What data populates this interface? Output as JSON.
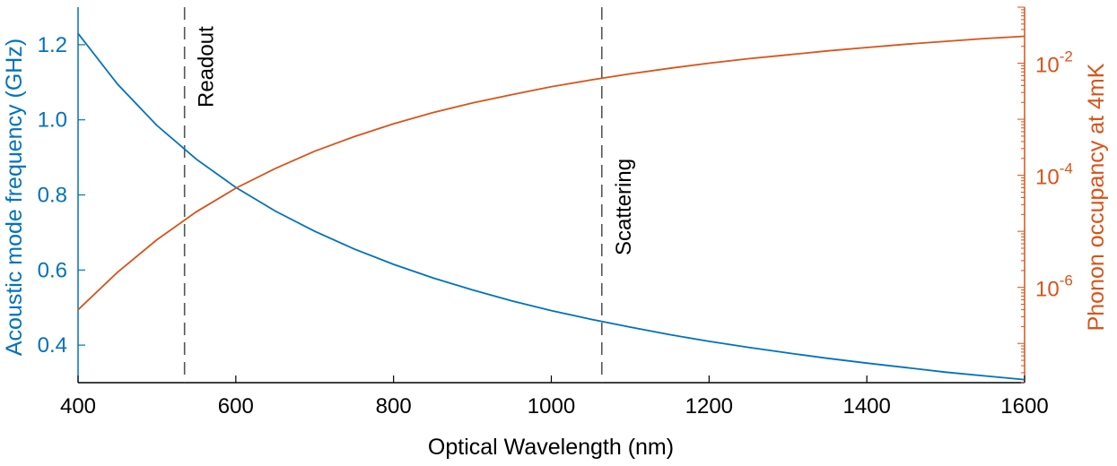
{
  "chart_data": {
    "type": "line",
    "title": "",
    "xlabel": "Optical Wavelength (nm)",
    "xlim": [
      400,
      1600
    ],
    "xticks": [
      400,
      600,
      800,
      1000,
      1200,
      1400,
      1600
    ],
    "left_axis": {
      "label": "Acoustic mode frequency (GHz)",
      "ylim": [
        0.3,
        1.3
      ],
      "ticks": [
        0.4,
        0.6,
        0.8,
        1.0,
        1.2
      ],
      "tick_labels": [
        "0.4",
        "0.6",
        "0.8",
        "1.0",
        "1.2"
      ],
      "color": "#0072BD"
    },
    "right_axis": {
      "label": "Phonon occupancy at 4mK",
      "scale": "log",
      "ylim_exponent": [
        -7.7,
        -1.0
      ],
      "major_exponents": [
        -6,
        -4,
        -2
      ],
      "tick_labels": [
        {
          "base": "10",
          "exp": "-6"
        },
        {
          "base": "10",
          "exp": "-4"
        },
        {
          "base": "10",
          "exp": "-2"
        }
      ],
      "color": "#D95319"
    },
    "series": [
      {
        "name": "Acoustic mode frequency",
        "axis": "left",
        "color": "#0072BD",
        "x": [
          400,
          450,
          500,
          550,
          600,
          650,
          700,
          750,
          800,
          850,
          900,
          950,
          1000,
          1050,
          1100,
          1150,
          1200,
          1250,
          1300,
          1350,
          1400,
          1450,
          1500,
          1550,
          1600
        ],
        "y": [
          1.23,
          1.095,
          0.985,
          0.895,
          0.82,
          0.757,
          0.703,
          0.656,
          0.615,
          0.579,
          0.547,
          0.518,
          0.492,
          0.469,
          0.448,
          0.428,
          0.41,
          0.394,
          0.379,
          0.365,
          0.352,
          0.34,
          0.328,
          0.318,
          0.308
        ]
      },
      {
        "name": "Phonon occupancy at 4mK",
        "axis": "right",
        "color": "#D95319",
        "x": [
          400,
          450,
          500,
          550,
          600,
          650,
          700,
          750,
          800,
          850,
          900,
          950,
          1000,
          1050,
          1100,
          1150,
          1200,
          1250,
          1300,
          1350,
          1400,
          1450,
          1500,
          1550,
          1600
        ],
        "log10_y": [
          -6.4,
          -5.73,
          -5.15,
          -4.65,
          -4.23,
          -3.88,
          -3.57,
          -3.31,
          -3.08,
          -2.88,
          -2.71,
          -2.56,
          -2.42,
          -2.3,
          -2.19,
          -2.09,
          -2.0,
          -1.92,
          -1.85,
          -1.78,
          -1.72,
          -1.66,
          -1.61,
          -1.56,
          -1.52
        ]
      }
    ],
    "vlines": [
      {
        "x": 535,
        "label": "Readout",
        "style": "dashed",
        "color": "#555555"
      },
      {
        "x": 1064,
        "label": "Scattering",
        "style": "dashed",
        "color": "#555555"
      }
    ]
  }
}
